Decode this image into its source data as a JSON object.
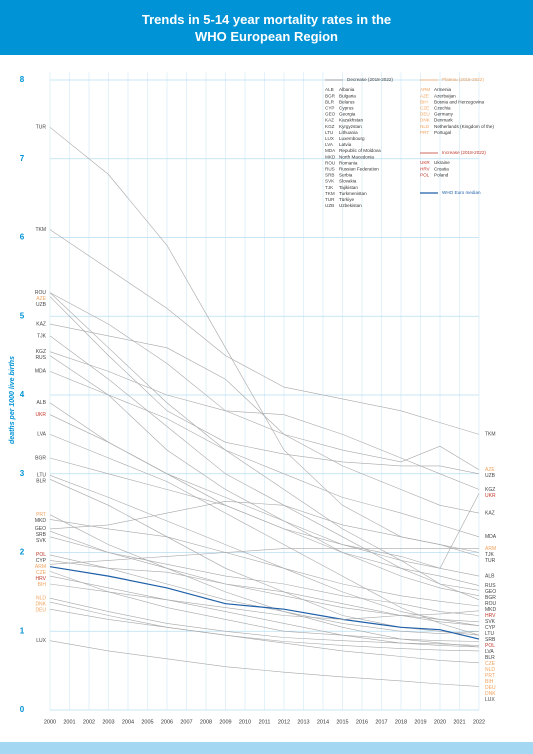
{
  "chart_data": {
    "type": "line",
    "title": "Trends in 5-14 year mortality rates in the WHO European Region",
    "y_label": "deaths per 1000 live births",
    "x": [
      2000,
      2003,
      2006,
      2009,
      2012,
      2015,
      2018,
      2020,
      2022
    ],
    "xlim": [
      2000,
      2022
    ],
    "xticks": [
      2000,
      2001,
      2002,
      2003,
      2004,
      2005,
      2006,
      2007,
      2008,
      2009,
      2010,
      2011,
      2012,
      2013,
      2014,
      2015,
      2016,
      2017,
      2018,
      2019,
      2020,
      2021,
      2022
    ],
    "ylim": [
      0,
      8.1
    ],
    "yticks": [
      0,
      1,
      2,
      3,
      4,
      5,
      6,
      7,
      8
    ],
    "grid": true,
    "legend": [
      {
        "title": "Decrease (2018-2022)",
        "color": "#444444",
        "entries": [
          {
            "code": "ALB",
            "name": "Albania"
          },
          {
            "code": "BGR",
            "name": "Bulgaria"
          },
          {
            "code": "BLR",
            "name": "Belarus"
          },
          {
            "code": "CYP",
            "name": "Cyprus"
          },
          {
            "code": "GEO",
            "name": "Georgia"
          },
          {
            "code": "KAZ",
            "name": "Kazakhstan"
          },
          {
            "code": "KGZ",
            "name": "Kyrgyzstan"
          },
          {
            "code": "LTU",
            "name": "Lithuania"
          },
          {
            "code": "LUX",
            "name": "Luxembourg"
          },
          {
            "code": "LVA",
            "name": "Latvia"
          },
          {
            "code": "MDA",
            "name": "Republic of Moldova"
          },
          {
            "code": "MKD",
            "name": "North Macedonia"
          },
          {
            "code": "ROU",
            "name": "Romania"
          },
          {
            "code": "RUS",
            "name": "Russian Federation"
          },
          {
            "code": "SRB",
            "name": "Serbia"
          },
          {
            "code": "SVK",
            "name": "Slovakia"
          },
          {
            "code": "TJK",
            "name": "Tajikistan"
          },
          {
            "code": "TKM",
            "name": "Turkmenistan"
          },
          {
            "code": "TUR",
            "name": "Türkiye"
          },
          {
            "code": "UZB",
            "name": "Uzbekistan"
          }
        ]
      },
      {
        "title": "Plateau (2018-2022)",
        "color": "#f2a35e",
        "entries": [
          {
            "code": "ARM",
            "name": "Armenia"
          },
          {
            "code": "AZE",
            "name": "Azerbaijan"
          },
          {
            "code": "BIH",
            "name": "Bosnia and Herzegovina"
          },
          {
            "code": "CZE",
            "name": "Czechia"
          },
          {
            "code": "DEU",
            "name": "Germany"
          },
          {
            "code": "DNK",
            "name": "Denmark"
          },
          {
            "code": "NLD",
            "name": "Netherlands (Kingdom of the)"
          },
          {
            "code": "PRT",
            "name": "Portugal"
          }
        ]
      },
      {
        "title": "Increase (2018-2022)",
        "color": "#c0392b",
        "entries": [
          {
            "code": "UKR",
            "name": "Ukraine"
          },
          {
            "code": "HRV",
            "name": "Croatia"
          },
          {
            "code": "POL",
            "name": "Poland"
          }
        ]
      },
      {
        "title": "WHO Euro median",
        "color": "#1f5fa8",
        "entries": []
      }
    ],
    "series": [
      {
        "name": "TUR",
        "group": 0,
        "values": [
          7.4,
          6.8,
          5.9,
          4.6,
          3.3,
          2.6,
          2.2,
          2.1,
          1.95
        ]
      },
      {
        "name": "TKM",
        "group": 0,
        "values": [
          6.1,
          5.6,
          5.1,
          4.5,
          4.1,
          3.95,
          3.8,
          3.65,
          3.5
        ]
      },
      {
        "name": "ROU",
        "group": 0,
        "values": [
          5.3,
          4.6,
          3.9,
          3.3,
          2.8,
          2.3,
          1.9,
          1.6,
          1.4
        ]
      },
      {
        "name": "AZE",
        "group": 1,
        "values": [
          5.3,
          4.9,
          4.4,
          3.8,
          3.5,
          3.3,
          3.15,
          3.35,
          3.05
        ]
      },
      {
        "name": "UZB",
        "group": 0,
        "values": [
          5.25,
          4.5,
          3.8,
          3.4,
          3.25,
          3.15,
          3.1,
          3.1,
          3.0
        ]
      },
      {
        "name": "KAZ",
        "group": 0,
        "values": [
          4.9,
          4.75,
          4.6,
          4.2,
          3.5,
          3.1,
          2.8,
          2.6,
          2.5
        ]
      },
      {
        "name": "TJK",
        "group": 0,
        "values": [
          4.75,
          4.2,
          3.6,
          3.0,
          2.6,
          2.35,
          2.2,
          2.1,
          2.0
        ]
      },
      {
        "name": "KGZ",
        "group": 0,
        "values": [
          4.55,
          4.3,
          4.0,
          3.8,
          3.75,
          3.5,
          3.2,
          3.0,
          2.8
        ]
      },
      {
        "name": "RUS",
        "group": 0,
        "values": [
          4.5,
          4.0,
          3.3,
          2.8,
          2.4,
          2.0,
          1.8,
          1.7,
          1.58
        ]
      },
      {
        "name": "MDA",
        "group": 0,
        "values": [
          4.3,
          4.0,
          3.7,
          3.3,
          3.0,
          2.7,
          2.5,
          2.35,
          2.2
        ]
      },
      {
        "name": "ALB",
        "group": 0,
        "values": [
          3.9,
          3.4,
          3.0,
          2.7,
          2.4,
          2.1,
          1.9,
          1.8,
          1.7
        ]
      },
      {
        "name": "UKR",
        "group": 2,
        "values": [
          3.75,
          3.4,
          3.0,
          2.6,
          2.3,
          2.1,
          1.95,
          1.8,
          2.75
        ]
      },
      {
        "name": "LVA",
        "group": 0,
        "values": [
          3.5,
          3.2,
          2.9,
          2.5,
          2.1,
          1.7,
          1.3,
          1.1,
          0.95
        ]
      },
      {
        "name": "BGR",
        "group": 0,
        "values": [
          3.2,
          3.0,
          2.8,
          2.6,
          2.3,
          2.0,
          1.7,
          1.55,
          1.45
        ]
      },
      {
        "name": "LTU",
        "group": 0,
        "values": [
          2.98,
          2.7,
          2.4,
          2.1,
          1.8,
          1.5,
          1.25,
          1.15,
          1.07
        ]
      },
      {
        "name": "BLR",
        "group": 0,
        "values": [
          2.93,
          2.6,
          2.2,
          1.8,
          1.5,
          1.2,
          1.05,
          1.0,
          0.95
        ]
      },
      {
        "name": "PRT",
        "group": 1,
        "values": [
          2.48,
          2.1,
          1.8,
          1.5,
          1.25,
          1.05,
          0.9,
          0.85,
          0.8
        ]
      },
      {
        "name": "MKD",
        "group": 0,
        "values": [
          2.42,
          2.3,
          2.2,
          2.0,
          1.8,
          1.6,
          1.45,
          1.38,
          1.32
        ]
      },
      {
        "name": "GEO",
        "group": 0,
        "values": [
          2.3,
          2.35,
          2.5,
          2.65,
          2.6,
          2.2,
          1.8,
          1.6,
          1.52
        ]
      },
      {
        "name": "SRB",
        "group": 0,
        "values": [
          2.27,
          2.0,
          1.8,
          1.6,
          1.45,
          1.3,
          1.2,
          1.12,
          1.07
        ]
      },
      {
        "name": "SVK",
        "group": 0,
        "values": [
          2.2,
          2.0,
          1.85,
          1.7,
          1.6,
          1.45,
          1.35,
          1.25,
          1.2
        ]
      },
      {
        "name": "POL",
        "group": 2,
        "values": [
          1.97,
          1.8,
          1.6,
          1.4,
          1.25,
          1.1,
          1.0,
          0.97,
          1.0
        ]
      },
      {
        "name": "CYP",
        "group": 0,
        "values": [
          1.9,
          1.8,
          1.75,
          1.6,
          1.5,
          1.35,
          1.2,
          1.15,
          1.12
        ]
      },
      {
        "name": "ARM",
        "group": 1,
        "values": [
          1.85,
          1.9,
          1.95,
          2.0,
          2.05,
          2.05,
          2.05,
          2.05,
          2.05
        ]
      },
      {
        "name": "EUR",
        "group": 3,
        "values": [
          1.82,
          1.7,
          1.55,
          1.35,
          1.28,
          1.15,
          1.05,
          1.02,
          0.9
        ]
      },
      {
        "name": "CZE",
        "group": 1,
        "values": [
          1.76,
          1.5,
          1.3,
          1.15,
          1.0,
          0.95,
          0.9,
          0.88,
          0.87
        ]
      },
      {
        "name": "HRV",
        "group": 2,
        "values": [
          1.7,
          1.55,
          1.4,
          1.3,
          1.2,
          1.15,
          1.2,
          1.22,
          1.26
        ]
      },
      {
        "name": "BIH",
        "group": 1,
        "values": [
          1.6,
          1.5,
          1.4,
          1.25,
          1.1,
          0.95,
          0.85,
          0.82,
          0.8
        ]
      },
      {
        "name": "NLD",
        "group": 1,
        "values": [
          1.42,
          1.25,
          1.1,
          1.0,
          0.92,
          0.88,
          0.85,
          0.84,
          0.82
        ]
      },
      {
        "name": "DNK",
        "group": 1,
        "values": [
          1.37,
          1.2,
          1.05,
          0.95,
          0.85,
          0.75,
          0.68,
          0.63,
          0.6
        ]
      },
      {
        "name": "DEU",
        "group": 1,
        "values": [
          1.28,
          1.15,
          1.05,
          0.95,
          0.87,
          0.82,
          0.78,
          0.76,
          0.75
        ]
      },
      {
        "name": "LUX",
        "group": 0,
        "values": [
          0.88,
          0.75,
          0.65,
          0.55,
          0.48,
          0.42,
          0.37,
          0.33,
          0.3
        ]
      }
    ]
  }
}
